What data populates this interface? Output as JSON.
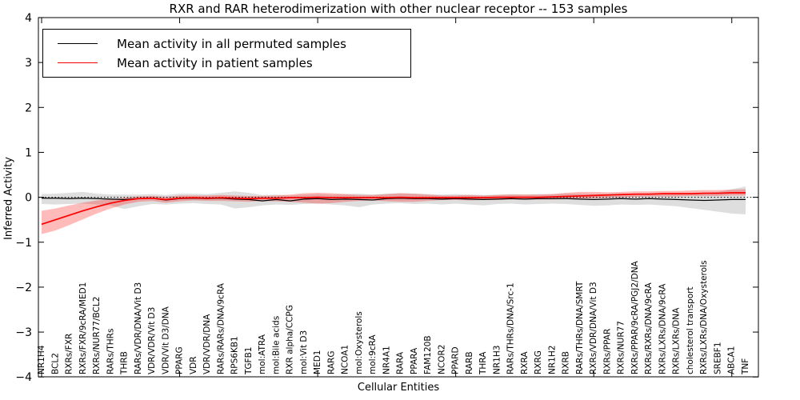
{
  "figure": {
    "title": "RXR and RAR heterodimerization with other nuclear receptor -- 153 samples",
    "xlabel": "Cellular Entities",
    "ylabel": "Inferred Activity"
  },
  "legend": {
    "entries": [
      {
        "label": "Mean activity in all permuted samples",
        "color": "#000000"
      },
      {
        "label": "Mean activity in patient samples",
        "color": "#ff0000"
      }
    ],
    "position": "upper left"
  },
  "colors": {
    "permuted_line": "#000000",
    "patient_line": "#ff0000",
    "permuted_band": "rgba(0,0,0,0.13)",
    "patient_band": "rgba(255,0,0,0.27)",
    "frame": "#000000",
    "background": "#ffffff"
  },
  "chart_data": {
    "type": "line",
    "title": "RXR and RAR heterodimerization with other nuclear receptor -- 153 samples",
    "xlabel": "Cellular Entities",
    "ylabel": "Inferred Activity",
    "ylim": [
      -4,
      4
    ],
    "yticks": [
      -4,
      -3,
      -2,
      -1,
      0,
      1,
      2,
      3,
      4
    ],
    "grid": false,
    "zero_line": "dotted",
    "legend_position": "upper left",
    "categories": [
      "NR1H4",
      "BCL2",
      "RXRs/FXR",
      "RXRs/FXR/9cRA/MED1",
      "RXRs/NUR77/BCL2",
      "RARs/THRs",
      "THRB",
      "RARs/VDR/DNA/Vit D3",
      "VDR/VDR/Vit D3",
      "VDR/Vit D3/DNA",
      "PPARG",
      "VDR",
      "VDR/VDR/DNA",
      "RARs/RARs/DNA/9cRA",
      "RPS6KB1",
      "TGFB1",
      "mol:ATRA",
      "mol:Bile acids",
      "RXR alpha/CCPG",
      "mol:Vit D3",
      "MED1",
      "RARG",
      "NCOA1",
      "mol:Oxysterols",
      "mol:9cRA",
      "NR4A1",
      "RARA",
      "PPARA",
      "FAM120B",
      "NCOR2",
      "PPARD",
      "RARB",
      "THRA",
      "NR1H3",
      "RARs/THRs/DNA/Src-1",
      "RXRA",
      "RXRG",
      "NR1H2",
      "RXRB",
      "RARs/THRs/DNA/SMRT",
      "RXRs/VDR/DNA/Vit D3",
      "RXRs/PPAR",
      "RXRs/NUR77",
      "RXRs/PPAR/9cRA/PGJ2/DNA",
      "RXRs/RXRs/DNA/9cRA",
      "RXRs/LXRs/DNA/9cRA",
      "RXRs/LXRs/DNA",
      "cholesterol transport",
      "RXRs/LXRs/DNA/Oxysterols",
      "SREBF1",
      "ABCA1",
      "TNF"
    ],
    "series": [
      {
        "name": "Mean activity in all permuted samples",
        "color": "#000000",
        "line_width": 1.3,
        "band_color": "rgba(0,0,0,0.13)",
        "values": [
          -0.02,
          -0.02,
          -0.03,
          -0.02,
          -0.03,
          -0.04,
          -0.05,
          -0.03,
          -0.02,
          -0.06,
          -0.03,
          -0.02,
          -0.03,
          -0.02,
          -0.04,
          -0.05,
          -0.08,
          -0.05,
          -0.08,
          -0.04,
          -0.03,
          -0.05,
          -0.04,
          -0.05,
          -0.06,
          -0.03,
          -0.02,
          -0.03,
          -0.03,
          -0.04,
          -0.03,
          -0.04,
          -0.05,
          -0.04,
          -0.03,
          -0.04,
          -0.03,
          -0.03,
          -0.03,
          -0.04,
          -0.05,
          -0.04,
          -0.03,
          -0.04,
          -0.03,
          -0.04,
          -0.05,
          -0.06,
          -0.07,
          -0.06,
          -0.05,
          -0.05
        ],
        "band_lo": [
          -0.15,
          -0.16,
          -0.15,
          -0.14,
          -0.16,
          -0.18,
          -0.26,
          -0.2,
          -0.15,
          -0.16,
          -0.14,
          -0.13,
          -0.15,
          -0.16,
          -0.25,
          -0.22,
          -0.18,
          -0.16,
          -0.17,
          -0.15,
          -0.14,
          -0.16,
          -0.18,
          -0.22,
          -0.16,
          -0.14,
          -0.13,
          -0.15,
          -0.14,
          -0.16,
          -0.14,
          -0.16,
          -0.18,
          -0.15,
          -0.14,
          -0.16,
          -0.15,
          -0.14,
          -0.15,
          -0.17,
          -0.19,
          -0.18,
          -0.16,
          -0.17,
          -0.16,
          -0.18,
          -0.2,
          -0.24,
          -0.28,
          -0.32,
          -0.36,
          -0.38
        ],
        "band_hi": [
          0.07,
          0.08,
          0.1,
          0.12,
          0.08,
          0.06,
          0.06,
          0.06,
          0.07,
          0.05,
          0.08,
          0.08,
          0.07,
          0.1,
          0.13,
          0.1,
          0.05,
          0.06,
          0.04,
          0.06,
          0.07,
          0.06,
          0.07,
          0.08,
          0.06,
          0.08,
          0.09,
          0.08,
          0.07,
          0.06,
          0.07,
          0.06,
          0.05,
          0.06,
          0.07,
          0.06,
          0.07,
          0.07,
          0.08,
          0.08,
          0.07,
          0.08,
          0.08,
          0.08,
          0.09,
          0.08,
          0.08,
          0.09,
          0.1,
          0.12,
          0.18,
          0.24
        ]
      },
      {
        "name": "Mean activity in patient samples",
        "color": "#ff0000",
        "line_width": 1.7,
        "band_color": "rgba(255,0,0,0.27)",
        "values": [
          -0.6,
          -0.5,
          -0.4,
          -0.3,
          -0.21,
          -0.13,
          -0.07,
          -0.03,
          -0.02,
          -0.05,
          -0.02,
          -0.01,
          -0.02,
          -0.01,
          -0.02,
          -0.03,
          -0.02,
          -0.02,
          -0.01,
          -0.01,
          0.0,
          -0.01,
          -0.01,
          -0.01,
          -0.01,
          -0.01,
          0.0,
          -0.01,
          -0.01,
          -0.01,
          -0.01,
          -0.01,
          -0.01,
          0.0,
          0.0,
          0.0,
          0.0,
          0.01,
          0.02,
          0.03,
          0.04,
          0.05,
          0.06,
          0.07,
          0.07,
          0.08,
          0.08,
          0.08,
          0.09,
          0.09,
          0.1,
          0.1
        ],
        "band_lo": [
          -0.82,
          -0.74,
          -0.62,
          -0.49,
          -0.36,
          -0.25,
          -0.16,
          -0.1,
          -0.08,
          -0.12,
          -0.09,
          -0.07,
          -0.08,
          -0.08,
          -0.09,
          -0.1,
          -0.08,
          -0.09,
          -0.1,
          -0.12,
          -0.14,
          -0.13,
          -0.1,
          -0.08,
          -0.07,
          -0.09,
          -0.1,
          -0.1,
          -0.08,
          -0.06,
          -0.06,
          -0.07,
          -0.06,
          -0.06,
          -0.05,
          -0.05,
          -0.05,
          -0.05,
          -0.04,
          -0.03,
          -0.02,
          -0.01,
          0.0,
          0.01,
          0.02,
          0.02,
          0.02,
          0.03,
          0.03,
          0.03,
          0.04,
          0.04
        ],
        "band_hi": [
          -0.3,
          -0.25,
          -0.18,
          -0.12,
          -0.07,
          -0.04,
          -0.01,
          0.02,
          0.03,
          0.01,
          0.04,
          0.04,
          0.04,
          0.05,
          0.04,
          0.03,
          0.03,
          0.04,
          0.06,
          0.09,
          0.1,
          0.09,
          0.07,
          0.05,
          0.05,
          0.07,
          0.09,
          0.08,
          0.06,
          0.04,
          0.04,
          0.05,
          0.04,
          0.05,
          0.06,
          0.06,
          0.06,
          0.07,
          0.1,
          0.12,
          0.12,
          0.11,
          0.12,
          0.13,
          0.13,
          0.14,
          0.14,
          0.15,
          0.16,
          0.16,
          0.17,
          0.18
        ]
      }
    ]
  }
}
